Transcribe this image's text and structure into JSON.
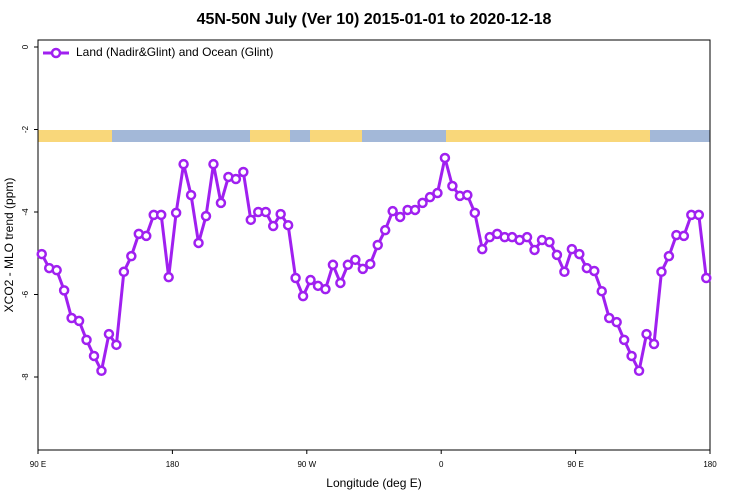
{
  "chart_data": {
    "type": "line",
    "title": "45N-50N July (Ver 10)   2015-01-01 to 2020-12-18",
    "x_label": "Longitude (deg E)",
    "y_label": "XCO2 - MLO trend (ppm)",
    "xlim": [
      90,
      540
    ],
    "xticks": [
      {
        "value": 90,
        "label": "90 E"
      },
      {
        "value": 180,
        "label": "180"
      },
      {
        "value": 270,
        "label": "90 W"
      },
      {
        "value": 360,
        "label": "0"
      },
      {
        "value": 450,
        "label": "90 E"
      },
      {
        "value": 540,
        "label": "180"
      }
    ],
    "ylim": [
      -9.77,
      0.17
    ],
    "yticks": [
      0,
      -2,
      -4,
      -6,
      -8
    ],
    "legend": "top-left",
    "x": [
      92.5,
      97.5,
      102.5,
      107.5,
      112.5,
      117.5,
      122.5,
      127.5,
      132.5,
      137.5,
      142.5,
      147.5,
      152.5,
      157.5,
      162.5,
      167.5,
      172.5,
      177.5,
      182.5,
      187.5,
      192.5,
      197.5,
      202.5,
      207.5,
      212.5,
      217.5,
      222.5,
      227.5,
      232.5,
      237.5,
      242.5,
      247.5,
      252.5,
      257.5,
      262.5,
      267.5,
      272.5,
      277.5,
      282.5,
      287.5,
      292.5,
      297.5,
      302.5,
      307.5,
      312.5,
      317.5,
      322.5,
      327.5,
      332.5,
      337.5,
      342.5,
      347.5,
      352.5,
      357.5,
      362.5,
      367.5,
      372.5,
      377.5,
      382.5,
      387.5,
      392.5,
      397.5,
      402.5,
      407.5,
      412.5,
      417.5,
      422.5,
      427.5,
      432.5,
      437.5,
      442.5,
      447.5,
      452.5,
      457.5,
      462.5,
      467.5,
      472.5,
      477.5,
      482.5,
      487.5,
      492.5,
      497.5,
      502.5,
      507.5,
      512.5,
      517.5,
      522.5,
      527.5,
      532.5,
      537.5
    ],
    "series": [
      {
        "name": "Land (Nadir&Glint) and Ocean (Glint)",
        "color": "#a020f0",
        "values": [
          -5.02,
          -5.36,
          -5.41,
          -5.9,
          -6.57,
          -6.64,
          -7.1,
          -7.49,
          -7.85,
          -6.96,
          -7.22,
          -5.45,
          -5.07,
          -4.53,
          -4.58,
          -4.07,
          -4.07,
          -5.58,
          -4.02,
          -2.84,
          -3.59,
          -4.75,
          -4.1,
          -2.84,
          -3.78,
          -3.15,
          -3.2,
          -3.03,
          -4.19,
          -4.0,
          -4.0,
          -4.34,
          -4.05,
          -4.32,
          -5.6,
          -6.04,
          -5.65,
          -5.79,
          -5.87,
          -5.28,
          -5.72,
          -5.28,
          -5.16,
          -5.38,
          -5.26,
          -4.8,
          -4.44,
          -3.98,
          -4.12,
          -3.95,
          -3.95,
          -3.78,
          -3.64,
          -3.54,
          -2.69,
          -3.37,
          -3.61,
          -3.59,
          -4.02,
          -4.9,
          -4.61,
          -4.53,
          -4.61,
          -4.61,
          -4.68,
          -4.61,
          -4.92,
          -4.68,
          -4.73,
          -5.04,
          -5.45,
          -4.9,
          -5.02,
          -5.36,
          -5.43,
          -5.92,
          -6.57,
          -6.67,
          -7.1,
          -7.49,
          -7.85,
          -6.96,
          -7.2,
          -5.45,
          -5.07,
          -4.56,
          -4.58,
          -4.07,
          -4.07,
          -5.6
        ]
      }
    ]
  }
}
